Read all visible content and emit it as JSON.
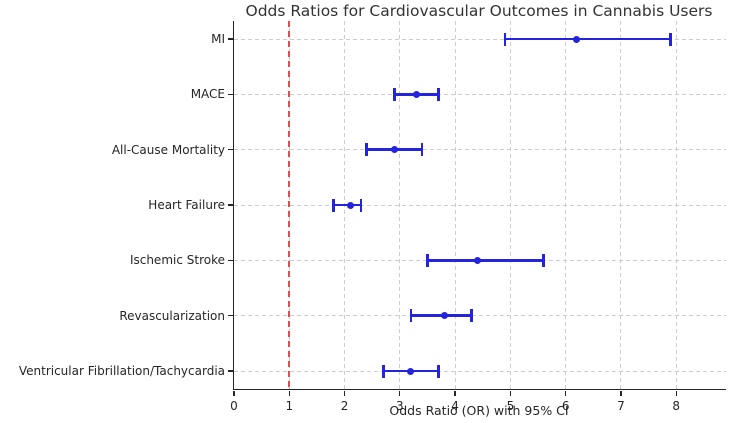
{
  "chart_data": {
    "type": "scatter",
    "variant": "forest-plot-horizontal-errorbars",
    "title": "Odds Ratios for Cardiovascular Outcomes in Cannabis Users",
    "xlabel": "Odds Ratio (OR) with 95% CI",
    "ylabel": "",
    "categories": [
      "MI",
      "MACE",
      "All-Cause Mortality",
      "Heart Failure",
      "Ischemic Stroke",
      "Revascularization",
      "Ventricular Fibrillation/Tachycardia"
    ],
    "points": [
      {
        "label": "MI",
        "or": 6.2,
        "ci_low": 4.9,
        "ci_high": 7.9
      },
      {
        "label": "MACE",
        "or": 3.3,
        "ci_low": 2.9,
        "ci_high": 3.7
      },
      {
        "label": "All-Cause Mortality",
        "or": 2.9,
        "ci_low": 2.4,
        "ci_high": 3.4
      },
      {
        "label": "Heart Failure",
        "or": 2.1,
        "ci_low": 1.8,
        "ci_high": 2.3
      },
      {
        "label": "Ischemic Stroke",
        "or": 4.4,
        "ci_low": 3.5,
        "ci_high": 5.6
      },
      {
        "label": "Revascularization",
        "or": 3.8,
        "ci_low": 3.2,
        "ci_high": 4.3
      },
      {
        "label": "Ventricular Fibrillation/Tachycardia",
        "or": 3.2,
        "ci_low": 2.7,
        "ci_high": 3.7
      }
    ],
    "xlim": [
      0,
      8.9
    ],
    "xticks": [
      0,
      1,
      2,
      3,
      4,
      5,
      6,
      7,
      8
    ],
    "reference_line": {
      "x": 1,
      "style": "dashed"
    },
    "grid": true,
    "grid_style": "dashed",
    "legend_position": "none",
    "colors": {
      "marker": "#2424dd",
      "reference_line": "#e04f4f",
      "grid": "#cdcdcd",
      "text": "#262626",
      "title": "#333333",
      "background": "#ffffff"
    }
  }
}
